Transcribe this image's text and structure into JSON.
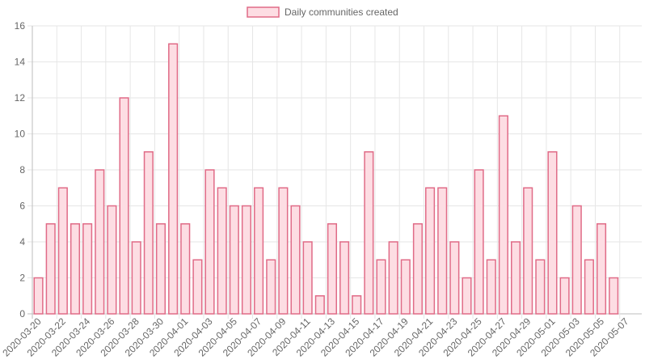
{
  "chart_data": {
    "type": "bar",
    "legend": {
      "position": "top",
      "label": "Daily communities created"
    },
    "grid": true,
    "ylim": [
      0,
      16
    ],
    "y_ticks": [
      0,
      2,
      4,
      6,
      8,
      10,
      12,
      14,
      16
    ],
    "x_tick_every": 2,
    "categories": [
      "2020-03-20",
      "2020-03-21",
      "2020-03-22",
      "2020-03-23",
      "2020-03-24",
      "2020-03-25",
      "2020-03-26",
      "2020-03-27",
      "2020-03-28",
      "2020-03-29",
      "2020-03-30",
      "2020-03-31",
      "2020-04-01",
      "2020-04-02",
      "2020-04-03",
      "2020-04-04",
      "2020-04-05",
      "2020-04-06",
      "2020-04-07",
      "2020-04-08",
      "2020-04-09",
      "2020-04-10",
      "2020-04-11",
      "2020-04-12",
      "2020-04-13",
      "2020-04-14",
      "2020-04-15",
      "2020-04-16",
      "2020-04-17",
      "2020-04-18",
      "2020-04-19",
      "2020-04-20",
      "2020-04-21",
      "2020-04-22",
      "2020-04-23",
      "2020-04-24",
      "2020-04-25",
      "2020-04-26",
      "2020-04-27",
      "2020-04-28",
      "2020-04-29",
      "2020-04-30",
      "2020-05-01",
      "2020-05-02",
      "2020-05-03",
      "2020-05-04",
      "2020-05-05",
      "2020-05-06",
      "2020-05-07",
      "2020-05-08"
    ],
    "series": [
      {
        "name": "Daily communities created",
        "color": "#e06b87",
        "fill": "#fddde3",
        "values": [
          2,
          5,
          7,
          5,
          5,
          8,
          6,
          12,
          4,
          9,
          5,
          15,
          5,
          3,
          8,
          7,
          6,
          6,
          7,
          3,
          7,
          6,
          4,
          1,
          5,
          4,
          1,
          9,
          3,
          4,
          3,
          5,
          7,
          7,
          4,
          2,
          8,
          3,
          11,
          4,
          7,
          3,
          9,
          2,
          6,
          3,
          5,
          2,
          0,
          0
        ]
      }
    ]
  }
}
